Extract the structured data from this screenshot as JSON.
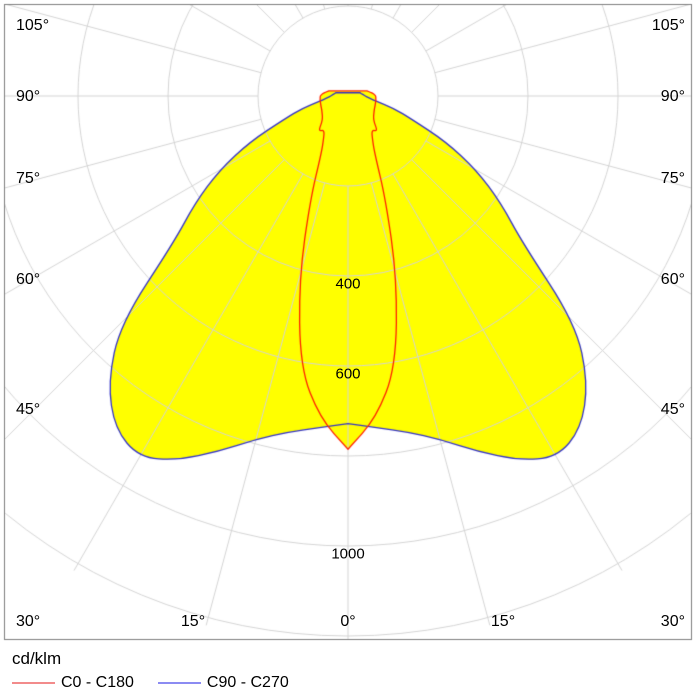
{
  "chart_data": {
    "type": "line",
    "subtype": "polar-photometric-luminous-intensity",
    "title": "",
    "unit": "cd/klm",
    "gamma_deg": [
      0,
      5,
      10,
      15,
      20,
      25,
      30,
      35,
      40,
      45,
      50,
      55,
      60,
      65,
      70,
      75,
      80,
      85,
      90,
      95,
      100,
      105
    ],
    "series": [
      {
        "name": "C0 - C180",
        "color": "#ff2000",
        "legend_color": "#f28b8b",
        "values": [
          785,
          718,
          612,
          420,
          245,
          140,
          108,
          92,
          102,
          82,
          74,
          70,
          67,
          65,
          64,
          63,
          63,
          62,
          62,
          57,
          50,
          44
        ]
      },
      {
        "name": "C90 - C270",
        "color": "#3232c8",
        "legend_color": "#8b8bf2",
        "values": [
          728,
          740,
          758,
          790,
          840,
          893,
          928,
          903,
          830,
          715,
          505,
          415,
          330,
          240,
          150,
          105,
          62,
          46,
          38,
          34,
          30,
          28
        ]
      }
    ],
    "symmetric_mirror": true,
    "fill_color": "#ffff00",
    "grid": {
      "rings_cd": [
        200,
        400,
        600,
        800,
        1000,
        1200
      ],
      "ring_labels": [
        "400",
        "600",
        "1000"
      ],
      "spoke_step_deg": 15,
      "grid_color": "#d4d4d4",
      "border_color": "#7d7d7d"
    },
    "angle_labels": {
      "left": [
        "105°",
        "90°",
        "75°",
        "60°",
        "45°",
        "30°"
      ],
      "right": [
        "105°",
        "90°",
        "75°",
        "60°",
        "45°",
        "30°"
      ],
      "bottom": [
        "15°",
        "0°",
        "15°"
      ]
    },
    "legend_position": "bottom-left"
  },
  "legend": {
    "unit": "cd/klm",
    "items": [
      {
        "label": "C0 - C180"
      },
      {
        "label": "C90 - C270"
      }
    ]
  }
}
